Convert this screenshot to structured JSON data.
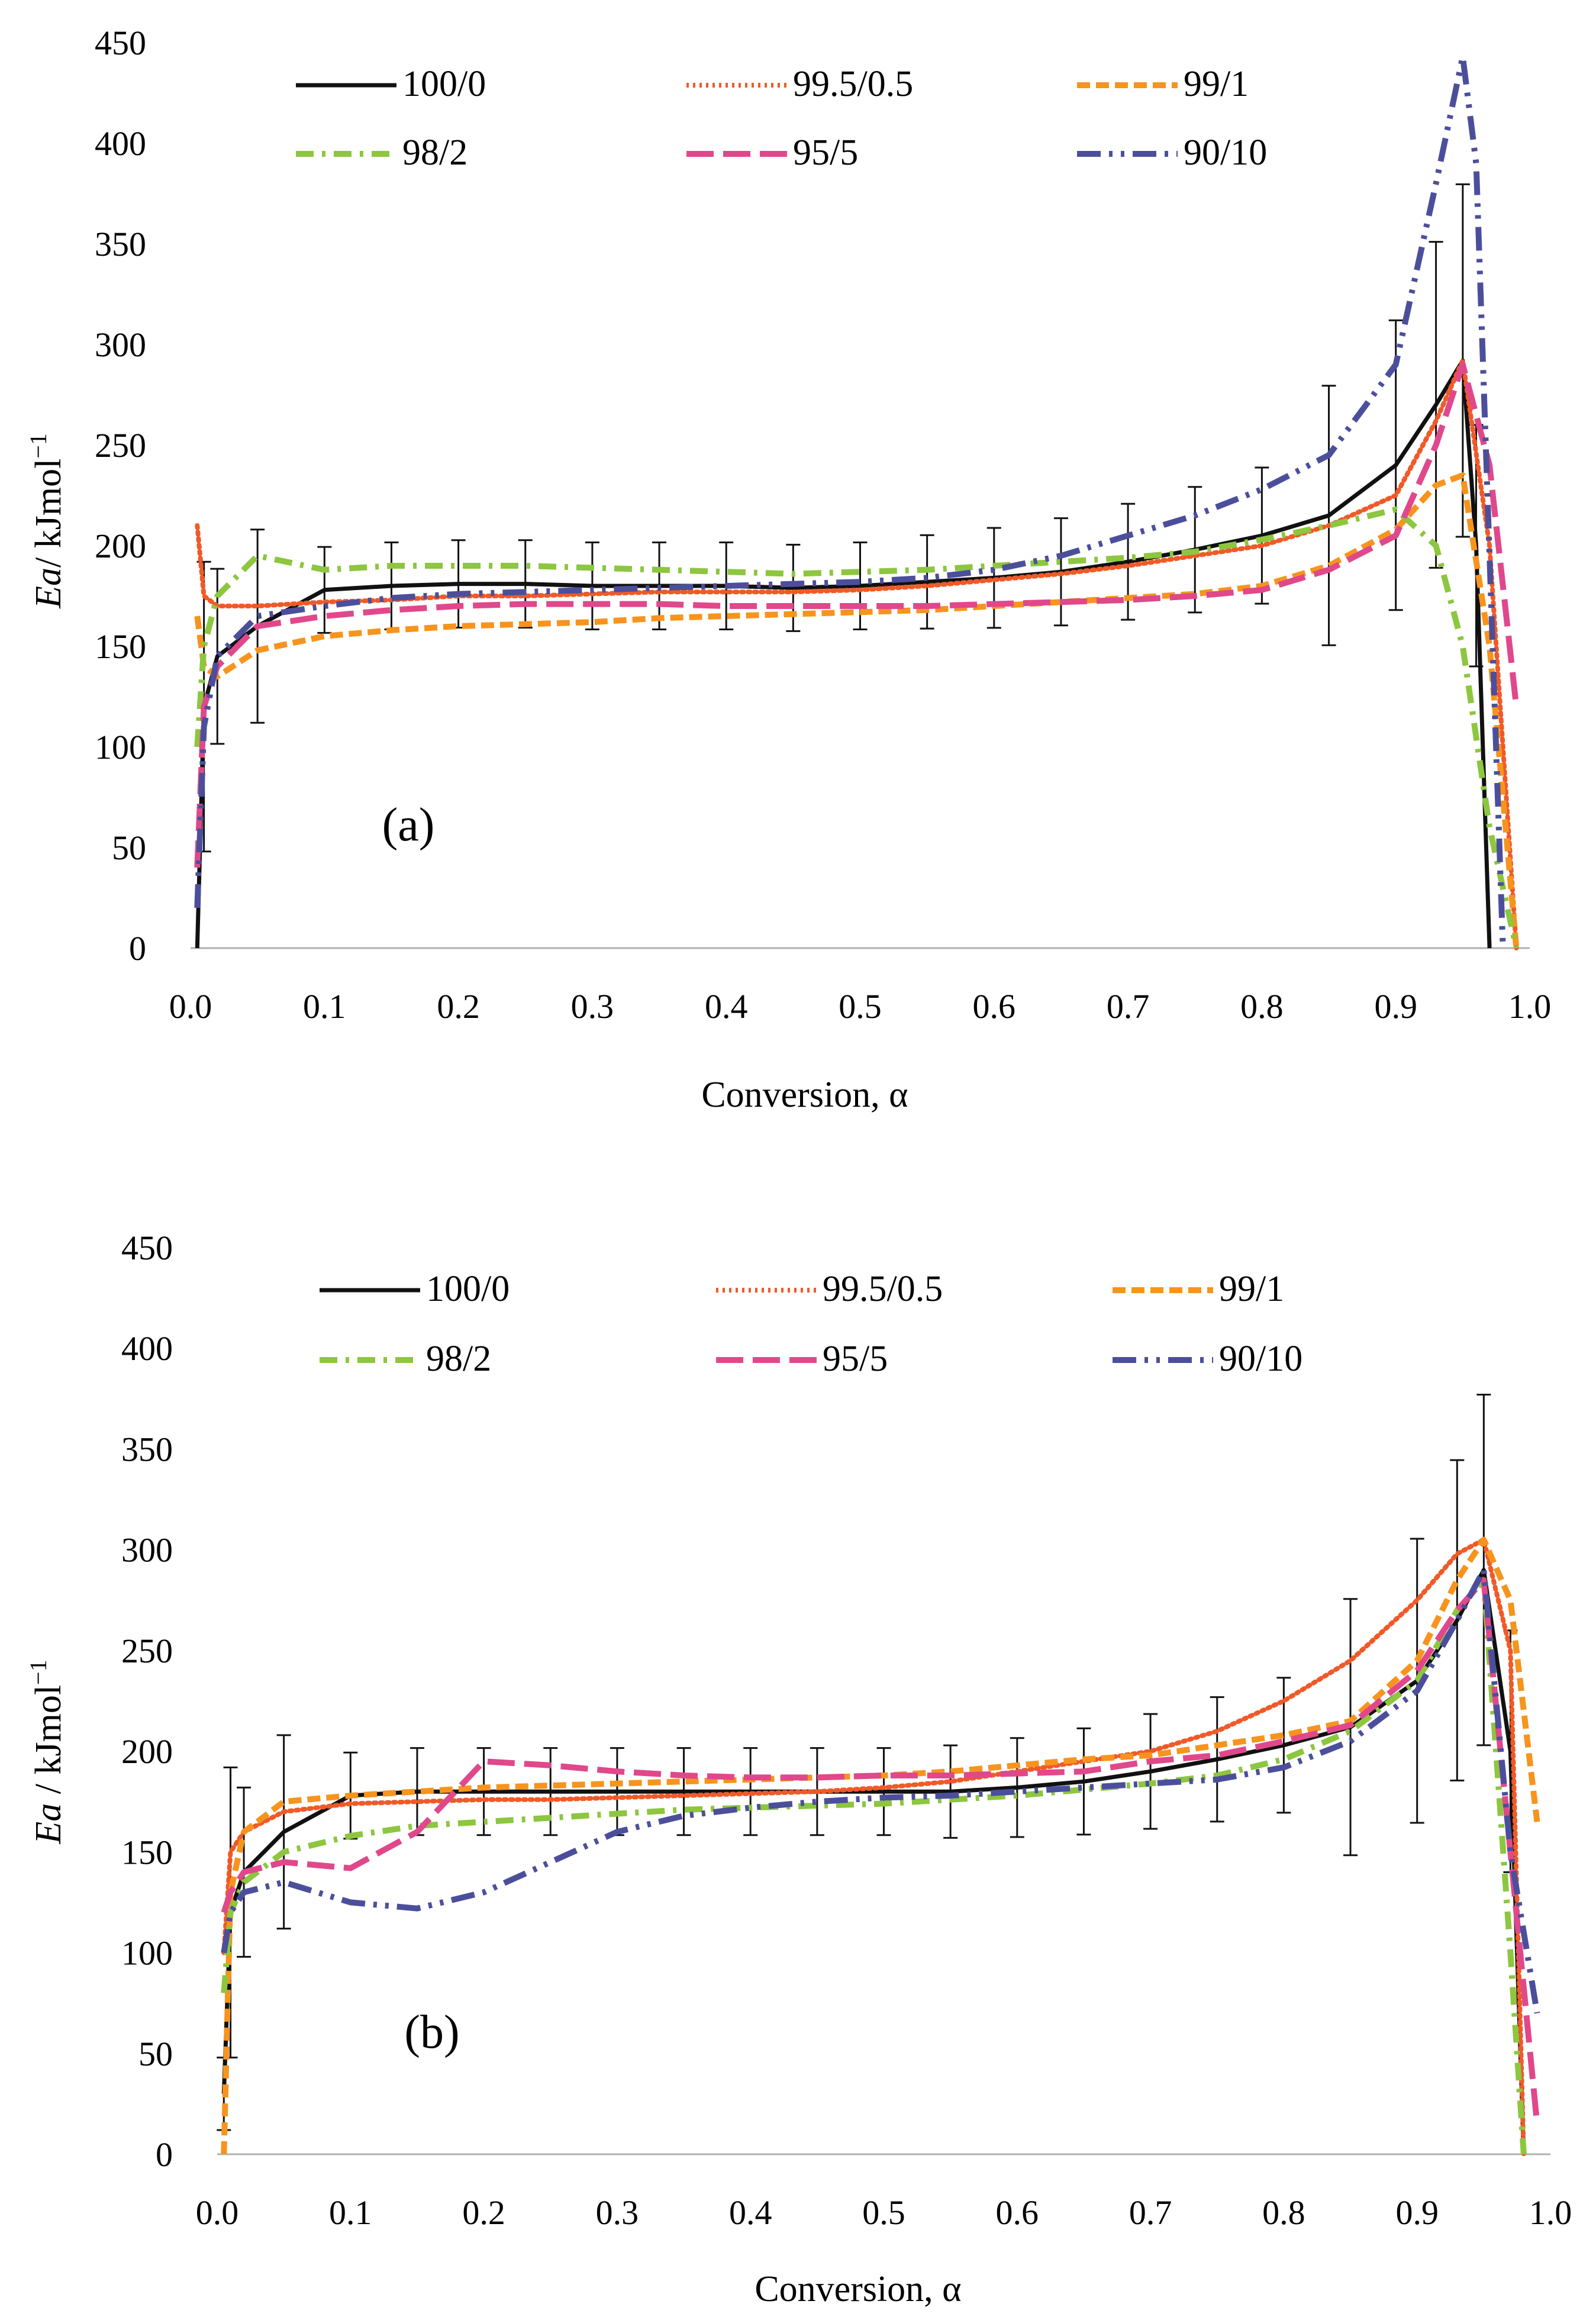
{
  "figure": {
    "xlabel": "Conversion, α",
    "ylabel_em": "Ea",
    "ylabel_rest_a": "/ kJmol",
    "ylabel_rest_b": " / kJmol",
    "ylabel_sup": "−1"
  },
  "series_style": {
    "100/0": {
      "color": "#111111",
      "dash": "none",
      "width": 7
    },
    "99.5/0.5": {
      "color": "#F05A28",
      "dash": "4 7",
      "width": 8
    },
    "99/1": {
      "color": "#F7941D",
      "dash": "22 10",
      "width": 10
    },
    "98/2": {
      "color": "#8DC63F",
      "dash": "30 14 6 14",
      "width": 10
    },
    "95/5": {
      "color": "#E0488B",
      "dash": "46 16",
      "width": 10
    },
    "90/10": {
      "color": "#4B4F9B",
      "dash": "40 14 6 14 6 14",
      "width": 10
    }
  },
  "chart_data": [
    {
      "type": "line",
      "panel_label": "(a)",
      "xlabel": "Conversion, α",
      "ylabel": "Ea/ kJmol⁻¹",
      "xlim": [
        0,
        1
      ],
      "ylim": [
        0,
        450
      ],
      "x_ticks": [
        "0.0",
        "0.1",
        "0.2",
        "0.3",
        "0.4",
        "0.5",
        "0.6",
        "0.7",
        "0.8",
        "0.9",
        "1.0"
      ],
      "y_ticks": [
        "0",
        "50",
        "100",
        "150",
        "200",
        "250",
        "300",
        "350",
        "400",
        "450"
      ],
      "legend": [
        "100/0",
        "99.5/0.5",
        "99/1",
        "98/2",
        "95/5",
        "90/10"
      ],
      "series": [
        {
          "name": "100/0",
          "x": [
            0.005,
            0.01,
            0.02,
            0.05,
            0.1,
            0.15,
            0.2,
            0.25,
            0.3,
            0.35,
            0.4,
            0.45,
            0.5,
            0.55,
            0.6,
            0.65,
            0.7,
            0.75,
            0.8,
            0.85,
            0.9,
            0.93,
            0.95,
            0.96,
            0.97
          ],
          "y": [
            0,
            120,
            145,
            160,
            178,
            180,
            181,
            181,
            180,
            180,
            180,
            179,
            180,
            182,
            184,
            187,
            192,
            198,
            205,
            215,
            240,
            270,
            292,
            200,
            0
          ]
        },
        {
          "name": "99.5/0.5",
          "x": [
            0.005,
            0.01,
            0.02,
            0.05,
            0.1,
            0.15,
            0.2,
            0.25,
            0.3,
            0.35,
            0.4,
            0.45,
            0.5,
            0.55,
            0.6,
            0.65,
            0.7,
            0.75,
            0.8,
            0.85,
            0.9,
            0.93,
            0.95,
            0.97,
            0.99
          ],
          "y": [
            210,
            175,
            170,
            170,
            172,
            173,
            175,
            175,
            176,
            177,
            177,
            177,
            178,
            180,
            183,
            186,
            190,
            195,
            200,
            210,
            225,
            262,
            292,
            200,
            0
          ]
        },
        {
          "name": "99/1",
          "x": [
            0.005,
            0.01,
            0.02,
            0.05,
            0.1,
            0.15,
            0.2,
            0.25,
            0.3,
            0.35,
            0.4,
            0.45,
            0.5,
            0.55,
            0.6,
            0.65,
            0.7,
            0.75,
            0.8,
            0.85,
            0.9,
            0.93,
            0.95,
            0.97,
            0.99
          ],
          "y": [
            165,
            140,
            135,
            148,
            155,
            158,
            160,
            161,
            162,
            164,
            165,
            166,
            167,
            168,
            170,
            172,
            174,
            176,
            180,
            190,
            208,
            230,
            235,
            150,
            0
          ]
        },
        {
          "name": "98/2",
          "x": [
            0.005,
            0.01,
            0.02,
            0.05,
            0.1,
            0.15,
            0.2,
            0.25,
            0.3,
            0.35,
            0.4,
            0.45,
            0.5,
            0.55,
            0.6,
            0.65,
            0.7,
            0.75,
            0.8,
            0.85,
            0.9,
            0.93,
            0.95,
            0.97,
            0.99
          ],
          "y": [
            100,
            150,
            175,
            195,
            188,
            190,
            190,
            190,
            189,
            188,
            187,
            186,
            187,
            188,
            190,
            192,
            194,
            197,
            203,
            210,
            218,
            200,
            150,
            60,
            0
          ]
        },
        {
          "name": "95/5",
          "x": [
            0.005,
            0.01,
            0.02,
            0.05,
            0.1,
            0.15,
            0.2,
            0.25,
            0.3,
            0.35,
            0.4,
            0.45,
            0.5,
            0.55,
            0.6,
            0.65,
            0.7,
            0.75,
            0.8,
            0.85,
            0.9,
            0.93,
            0.95,
            0.97,
            0.99
          ],
          "y": [
            40,
            120,
            140,
            160,
            165,
            168,
            170,
            171,
            171,
            171,
            170,
            170,
            170,
            170,
            171,
            172,
            173,
            175,
            178,
            188,
            205,
            250,
            290,
            240,
            120
          ]
        },
        {
          "name": "90/10",
          "x": [
            0.005,
            0.01,
            0.02,
            0.05,
            0.1,
            0.15,
            0.2,
            0.25,
            0.3,
            0.35,
            0.4,
            0.45,
            0.5,
            0.55,
            0.6,
            0.65,
            0.7,
            0.75,
            0.8,
            0.85,
            0.9,
            0.93,
            0.95,
            0.96,
            0.98
          ],
          "y": [
            20,
            110,
            145,
            165,
            170,
            174,
            176,
            177,
            178,
            179,
            180,
            181,
            182,
            184,
            188,
            195,
            205,
            215,
            228,
            245,
            290,
            380,
            443,
            390,
            0
          ]
        }
      ]
    },
    {
      "type": "line",
      "panel_label": "(b)",
      "xlabel": "Conversion, α",
      "ylabel": "Ea / kJmol⁻¹",
      "xlim": [
        0,
        1
      ],
      "ylim": [
        0,
        450
      ],
      "x_ticks": [
        "0.0",
        "0.1",
        "0.2",
        "0.3",
        "0.4",
        "0.5",
        "0.6",
        "0.7",
        "0.8",
        "0.9",
        "1.0"
      ],
      "y_ticks": [
        "0",
        "50",
        "100",
        "150",
        "200",
        "250",
        "300",
        "350",
        "400",
        "450"
      ],
      "legend": [
        "100/0",
        "99.5/0.5",
        "99/1",
        "98/2",
        "95/5",
        "90/10"
      ],
      "series": [
        {
          "name": "100/0",
          "x": [
            0.005,
            0.01,
            0.02,
            0.05,
            0.1,
            0.15,
            0.2,
            0.25,
            0.3,
            0.35,
            0.4,
            0.45,
            0.5,
            0.55,
            0.6,
            0.65,
            0.7,
            0.75,
            0.8,
            0.85,
            0.9,
            0.93,
            0.95,
            0.97,
            0.98
          ],
          "y": [
            30,
            120,
            140,
            160,
            178,
            180,
            180,
            180,
            180,
            180,
            180,
            180,
            180,
            180,
            182,
            185,
            190,
            196,
            203,
            212,
            235,
            265,
            290,
            200,
            0
          ]
        },
        {
          "name": "99.5/0.5",
          "x": [
            0.005,
            0.01,
            0.02,
            0.05,
            0.1,
            0.15,
            0.2,
            0.25,
            0.3,
            0.35,
            0.4,
            0.45,
            0.5,
            0.55,
            0.6,
            0.65,
            0.7,
            0.75,
            0.8,
            0.85,
            0.9,
            0.93,
            0.95,
            0.97,
            0.98
          ],
          "y": [
            100,
            150,
            160,
            170,
            174,
            175,
            176,
            176,
            177,
            178,
            179,
            180,
            182,
            185,
            190,
            195,
            200,
            210,
            225,
            245,
            275,
            298,
            305,
            250,
            0
          ]
        },
        {
          "name": "99/1",
          "x": [
            0.005,
            0.01,
            0.02,
            0.05,
            0.1,
            0.15,
            0.2,
            0.25,
            0.3,
            0.35,
            0.4,
            0.45,
            0.5,
            0.55,
            0.6,
            0.65,
            0.7,
            0.75,
            0.8,
            0.85,
            0.9,
            0.93,
            0.95,
            0.97,
            0.99
          ],
          "y": [
            0,
            130,
            160,
            175,
            178,
            180,
            182,
            183,
            184,
            185,
            186,
            187,
            188,
            190,
            193,
            196,
            198,
            203,
            208,
            215,
            245,
            285,
            305,
            275,
            165
          ]
        },
        {
          "name": "98/2",
          "x": [
            0.005,
            0.01,
            0.02,
            0.05,
            0.1,
            0.15,
            0.2,
            0.25,
            0.3,
            0.35,
            0.4,
            0.45,
            0.5,
            0.55,
            0.6,
            0.65,
            0.7,
            0.75,
            0.8,
            0.85,
            0.9,
            0.93,
            0.95,
            0.97,
            0.98
          ],
          "y": [
            80,
            120,
            135,
            150,
            158,
            163,
            165,
            167,
            169,
            171,
            172,
            173,
            174,
            176,
            178,
            181,
            184,
            188,
            196,
            210,
            235,
            270,
            285,
            100,
            0
          ]
        },
        {
          "name": "95/5",
          "x": [
            0.005,
            0.01,
            0.02,
            0.05,
            0.1,
            0.15,
            0.2,
            0.25,
            0.3,
            0.35,
            0.4,
            0.45,
            0.5,
            0.55,
            0.6,
            0.65,
            0.7,
            0.75,
            0.8,
            0.85,
            0.9,
            0.93,
            0.95,
            0.97,
            0.99
          ],
          "y": [
            120,
            130,
            140,
            145,
            142,
            160,
            195,
            193,
            190,
            188,
            187,
            187,
            188,
            188,
            189,
            190,
            195,
            198,
            205,
            213,
            240,
            270,
            285,
            150,
            15
          ]
        },
        {
          "name": "90/10",
          "x": [
            0.005,
            0.01,
            0.02,
            0.05,
            0.1,
            0.15,
            0.2,
            0.25,
            0.3,
            0.35,
            0.4,
            0.45,
            0.5,
            0.55,
            0.6,
            0.65,
            0.7,
            0.75,
            0.8,
            0.85,
            0.9,
            0.93,
            0.95,
            0.97,
            0.99
          ],
          "y": [
            100,
            120,
            130,
            135,
            125,
            122,
            130,
            145,
            160,
            168,
            172,
            175,
            177,
            178,
            180,
            182,
            184,
            186,
            192,
            205,
            230,
            265,
            290,
            150,
            70
          ]
        }
      ]
    }
  ]
}
